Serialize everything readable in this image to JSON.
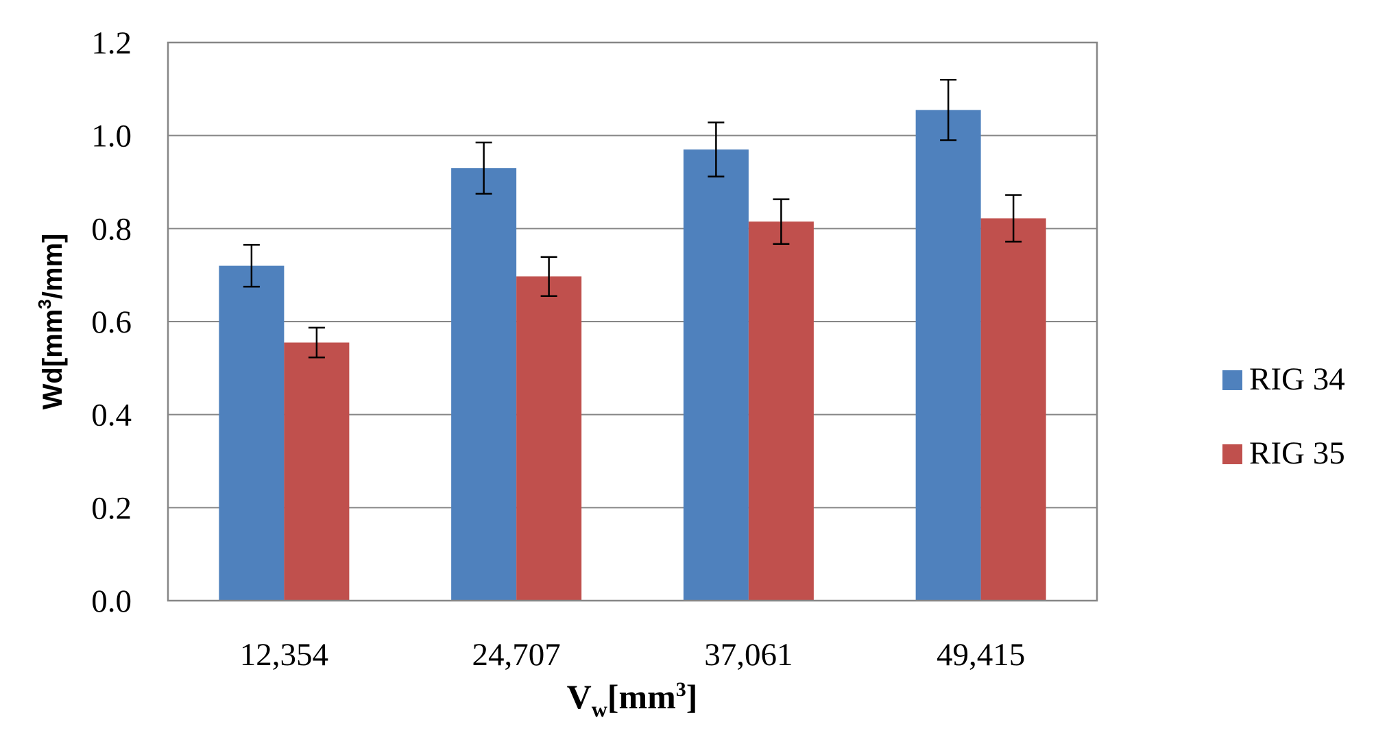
{
  "chart_data": {
    "type": "bar",
    "title": "",
    "categories": [
      "12,354",
      "24,707",
      "37,061",
      "49,415"
    ],
    "series": [
      {
        "name": "RIG 34",
        "color": "#4F81BD",
        "values": [
          0.72,
          0.93,
          0.97,
          1.055
        ],
        "errors": [
          0.045,
          0.055,
          0.058,
          0.065
        ]
      },
      {
        "name": "RIG 35",
        "color": "#C0504D",
        "values": [
          0.555,
          0.697,
          0.815,
          0.822
        ],
        "errors": [
          0.032,
          0.042,
          0.048,
          0.05
        ]
      }
    ],
    "yticks": [
      "0.0",
      "0.2",
      "0.4",
      "0.6",
      "0.8",
      "1.0",
      "1.2"
    ],
    "ylim": [
      0,
      1.2
    ],
    "ylabel": {
      "main": "Wd[mm",
      "sup": "3",
      "tail": "/mm]"
    },
    "xlabel": {
      "main": "V",
      "sub": "w",
      "mid": "[mm",
      "sup": "3",
      "tail": "]"
    },
    "grid": true,
    "legend_position": "right"
  }
}
